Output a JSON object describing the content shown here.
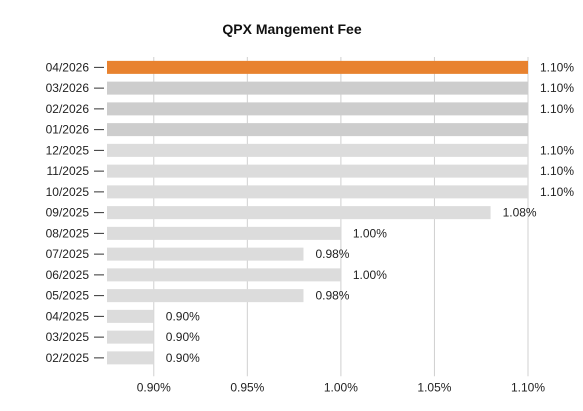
{
  "chart_data": {
    "type": "bar",
    "orientation": "horizontal",
    "title": "QPX Mangement Fee",
    "xlabel": "",
    "ylabel": "",
    "categories": [
      "04/2026",
      "03/2026",
      "02/2026",
      "01/2026",
      "12/2025",
      "11/2025",
      "10/2025",
      "09/2025",
      "08/2025",
      "07/2025",
      "06/2025",
      "05/2025",
      "04/2025",
      "03/2025",
      "02/2025"
    ],
    "values": [
      1.1,
      1.1,
      1.1,
      1.1,
      1.1,
      1.1,
      1.1,
      1.08,
      1.0,
      0.98,
      1.0,
      0.98,
      0.9,
      0.9,
      0.9
    ],
    "data_labels": [
      "1.10%",
      "1.10%",
      "1.10%",
      "",
      "1.10%",
      "1.10%",
      "1.10%",
      "1.08%",
      "1.00%",
      "0.98%",
      "1.00%",
      "0.98%",
      "0.90%",
      "0.90%",
      "0.90%"
    ],
    "xlim": [
      0.875,
      1.1
    ],
    "xticks": [
      0.9,
      0.95,
      1.0,
      1.05,
      1.1
    ],
    "xtick_labels": [
      "0.90%",
      "0.95%",
      "1.00%",
      "1.05%",
      "1.10%"
    ],
    "grid": "vertical",
    "legend": "none",
    "colors": {
      "highlight": "#E8822F",
      "recent": "#CDCDCD",
      "default": "#DCDCDC",
      "grid": "#D0D0D0"
    },
    "highlight_index": 0,
    "recent_indices": [
      1,
      2,
      3
    ]
  }
}
